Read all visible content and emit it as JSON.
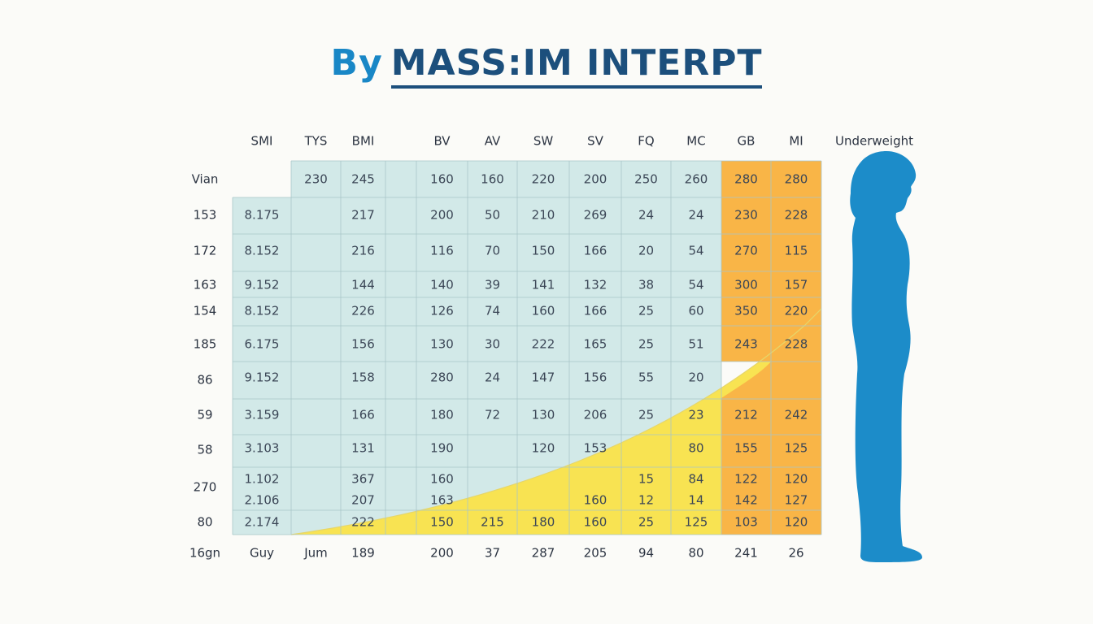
{
  "title": {
    "part1": "By",
    "part2": "MASS:IM INTERPT"
  },
  "colors": {
    "background": "#fbfbf8",
    "light_blue": "#d2e9e8",
    "yellow": "#f8e352",
    "orange": "#f9b547",
    "grid": "#a9c6c8",
    "silhouette": "#1c8cc9",
    "title_blue": "#1987c6",
    "title_navy": "#1c4f7c"
  },
  "silhouette_label": "Underweight",
  "chart_data": {
    "type": "table",
    "column_headers": [
      "SMI",
      "TYS",
      "BMI",
      "",
      "BV",
      "AV",
      "SW",
      "SV",
      "FQ",
      "MC",
      "GB",
      "MI"
    ],
    "rows": [
      {
        "label": "Vian",
        "cells": [
          "",
          "230",
          "245",
          "",
          "160",
          "160",
          "220",
          "200",
          "250",
          "260",
          "280",
          "280"
        ]
      },
      {
        "label": "153",
        "cells": [
          "8.175",
          "",
          "217",
          "",
          "200",
          "50",
          "210",
          "269",
          "24",
          "24",
          "230",
          "228"
        ]
      },
      {
        "label": "172",
        "cells": [
          "8.152",
          "",
          "216",
          "",
          "116",
          "70",
          "150",
          "166",
          "20",
          "54",
          "270",
          "115"
        ]
      },
      {
        "label": "163",
        "cells": [
          "9.152",
          "",
          "144",
          "",
          "140",
          "39",
          "141",
          "132",
          "38",
          "54",
          "300",
          "157"
        ]
      },
      {
        "label": "154",
        "cells": [
          "8.152",
          "",
          "226",
          "",
          "126",
          "74",
          "160",
          "166",
          "25",
          "60",
          "350",
          "220"
        ]
      },
      {
        "label": "185",
        "cells": [
          "6.175",
          "",
          "156",
          "",
          "130",
          "30",
          "222",
          "165",
          "25",
          "51",
          "243",
          "228"
        ]
      },
      {
        "label": "86",
        "cells": [
          "9.152",
          "",
          "158",
          "",
          "280",
          "24",
          "147",
          "156",
          "55",
          "20",
          "",
          ""
        ]
      },
      {
        "label": "59",
        "cells": [
          "3.159",
          "",
          "166",
          "",
          "180",
          "72",
          "130",
          "206",
          "25",
          "23",
          "212",
          "242"
        ]
      },
      {
        "label": "58",
        "cells": [
          "3.103",
          "",
          "131",
          "",
          "190",
          "",
          "120",
          "153",
          "",
          "80",
          "155",
          "125"
        ]
      },
      {
        "label": "",
        "cells": [
          "1.102",
          "",
          "367",
          "",
          "160",
          "",
          "",
          "",
          "15",
          "84",
          "122",
          "120"
        ]
      },
      {
        "label": "270",
        "cells": [
          "2.106",
          "",
          "207",
          "",
          "163",
          "",
          "",
          "160",
          "12",
          "14",
          "142",
          "127"
        ]
      },
      {
        "label": "80",
        "cells": [
          "2.174",
          "",
          "222",
          "",
          "150",
          "215",
          "180",
          "160",
          "25",
          "125",
          "103",
          "120"
        ]
      }
    ],
    "footer": {
      "label": "16gn",
      "cells": [
        "Guy",
        "Jum",
        "189",
        "",
        "200",
        "37",
        "287",
        "205",
        "94",
        "80",
        "241",
        "26"
      ]
    },
    "shading": {
      "orange_columns": [
        "GB",
        "MI"
      ],
      "yellow_region": "below curve rising from BMI column at bottom to MI column near row 185"
    },
    "grid": true
  }
}
